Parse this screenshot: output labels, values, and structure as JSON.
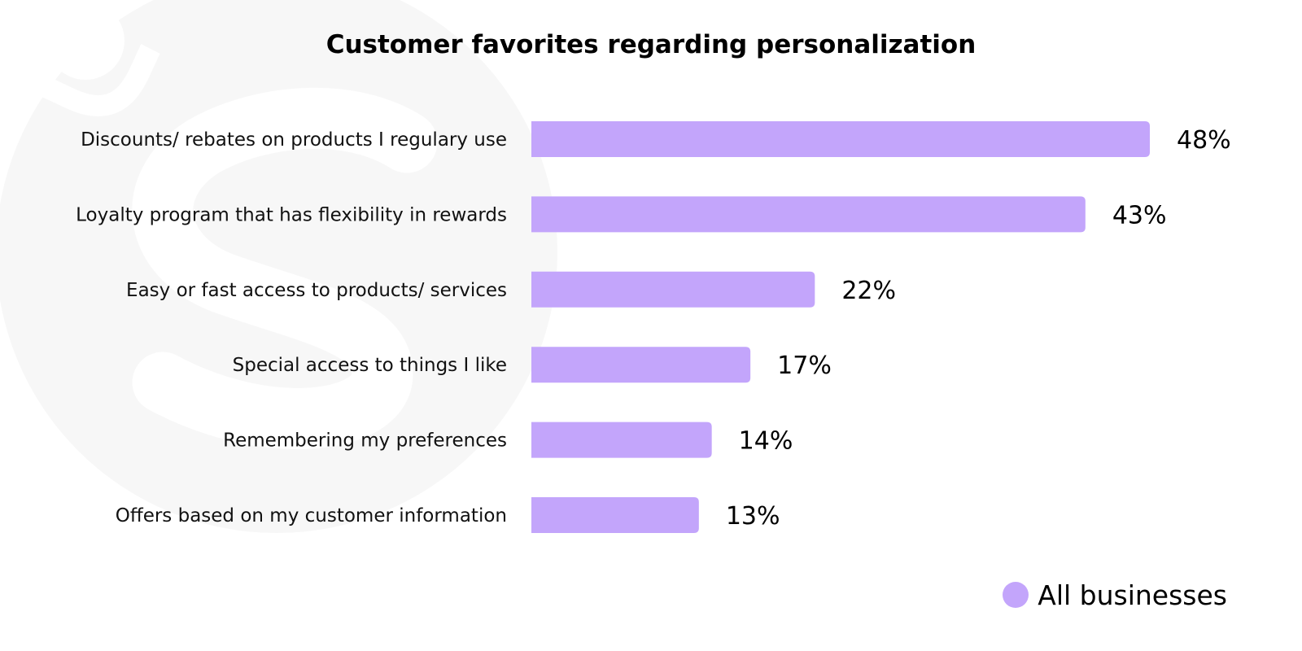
{
  "chart_data": {
    "type": "bar",
    "orientation": "horizontal",
    "title": "Customer favorites regarding personalization",
    "categories": [
      "Discounts/ rebates on products I regulary use",
      "Loyalty program that has flexibility in rewards",
      "Easy or fast access to products/ services",
      "Special access to things I like",
      "Remembering my preferences",
      "Offers based on my customer information"
    ],
    "series": [
      {
        "name": "All businesses",
        "values": [
          48,
          43,
          22,
          17,
          14,
          13
        ],
        "value_labels": [
          "48%",
          "43%",
          "22%",
          "17%",
          "14%",
          "13%"
        ],
        "color": "#c3a5fb"
      }
    ],
    "xlim": [
      0,
      48
    ],
    "grid": false,
    "legend_position": "bottom-right"
  },
  "colors": {
    "bar": "#c3a5fb",
    "watermark": "#f7f7f7",
    "text": "#000000"
  }
}
